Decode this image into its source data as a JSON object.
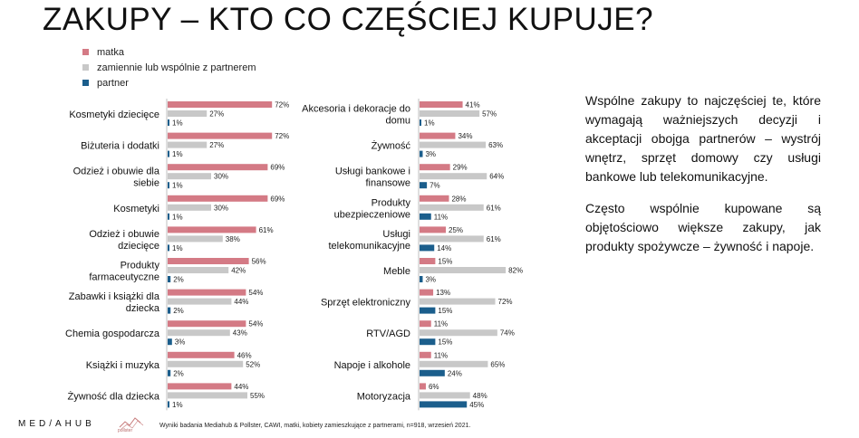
{
  "title": "ZAKUPY – KTO CO CZĘŚCIEJ KUPUJE?",
  "legend": [
    {
      "label": "matka",
      "color": "#d47a85"
    },
    {
      "label": "zamiennie lub wspólnie z partnerem",
      "color": "#c8c8c8"
    },
    {
      "label": "partner",
      "color": "#1b5e8c"
    }
  ],
  "chart_data": [
    {
      "type": "bar",
      "orientation": "horizontal",
      "series_names": [
        "matka",
        "zamiennie lub wspólnie z partnerem",
        "partner"
      ],
      "colors": [
        "#d47a85",
        "#c8c8c8",
        "#1b5e8c"
      ],
      "categories": [
        {
          "label": [
            "Kosmetyki dziecięce"
          ],
          "values": [
            72,
            27,
            1
          ]
        },
        {
          "label": [
            "Biżuteria i dodatki"
          ],
          "values": [
            72,
            27,
            1
          ]
        },
        {
          "label": [
            "Odzież i obuwie dla",
            "siebie"
          ],
          "values": [
            69,
            30,
            1
          ]
        },
        {
          "label": [
            "Kosmetyki"
          ],
          "values": [
            69,
            30,
            1
          ]
        },
        {
          "label": [
            "Odzież i obuwie",
            "dziecięce"
          ],
          "values": [
            61,
            38,
            1
          ]
        },
        {
          "label": [
            "Produkty",
            "farmaceutyczne"
          ],
          "values": [
            56,
            42,
            2
          ]
        },
        {
          "label": [
            "Zabawki i książki dla",
            "dziecka"
          ],
          "values": [
            54,
            44,
            2
          ]
        },
        {
          "label": [
            "Chemia gospodarcza"
          ],
          "values": [
            54,
            43,
            3
          ]
        },
        {
          "label": [
            "Książki i muzyka"
          ],
          "values": [
            46,
            52,
            2
          ]
        },
        {
          "label": [
            "Żywność dla dziecka"
          ],
          "values": [
            44,
            55,
            1
          ]
        }
      ]
    },
    {
      "type": "bar",
      "orientation": "horizontal",
      "series_names": [
        "matka",
        "zamiennie lub wspólnie z partnerem",
        "partner"
      ],
      "colors": [
        "#d47a85",
        "#c8c8c8",
        "#1b5e8c"
      ],
      "categories": [
        {
          "label": [
            "Akcesoria i dekoracje do",
            "domu"
          ],
          "values": [
            41,
            57,
            1
          ]
        },
        {
          "label": [
            "Żywność"
          ],
          "values": [
            34,
            63,
            3
          ]
        },
        {
          "label": [
            "Usługi bankowe i",
            "finansowe"
          ],
          "values": [
            29,
            64,
            7
          ]
        },
        {
          "label": [
            "Produkty",
            "ubezpieczeniowe"
          ],
          "values": [
            28,
            61,
            11
          ]
        },
        {
          "label": [
            "Usługi",
            "telekomunikacyjne"
          ],
          "values": [
            25,
            61,
            14
          ]
        },
        {
          "label": [
            "Meble"
          ],
          "values": [
            15,
            82,
            3
          ]
        },
        {
          "label": [
            "Sprzęt elektroniczny"
          ],
          "values": [
            13,
            72,
            15
          ]
        },
        {
          "label": [
            "RTV/AGD"
          ],
          "values": [
            11,
            74,
            15
          ]
        },
        {
          "label": [
            "Napoje i alkohole"
          ],
          "values": [
            11,
            65,
            24
          ]
        },
        {
          "label": [
            "Motoryzacja"
          ],
          "values": [
            6,
            48,
            45
          ]
        }
      ]
    }
  ],
  "side_text": {
    "paragraph1": "Wspólne zakupy to najczęściej te, które wymagają ważniejszych decyzji i akceptacji obojga partnerów – wystrój wnętrz, sprzęt domowy czy usługi bankowe lub telekomunikacyjne.",
    "paragraph2": "Często wspólnie kupowane są objętościowo większe zakupy, jak produkty spożywcze – żywność i napoje."
  },
  "footer": {
    "logo": "MED/AHUB",
    "pollster_logo": "pollster",
    "note": "Wyniki badania Mediahub & Pollster, CAWI, matki, kobiety zamieszkujące z partnerami, n=918, wrzesień 2021."
  }
}
